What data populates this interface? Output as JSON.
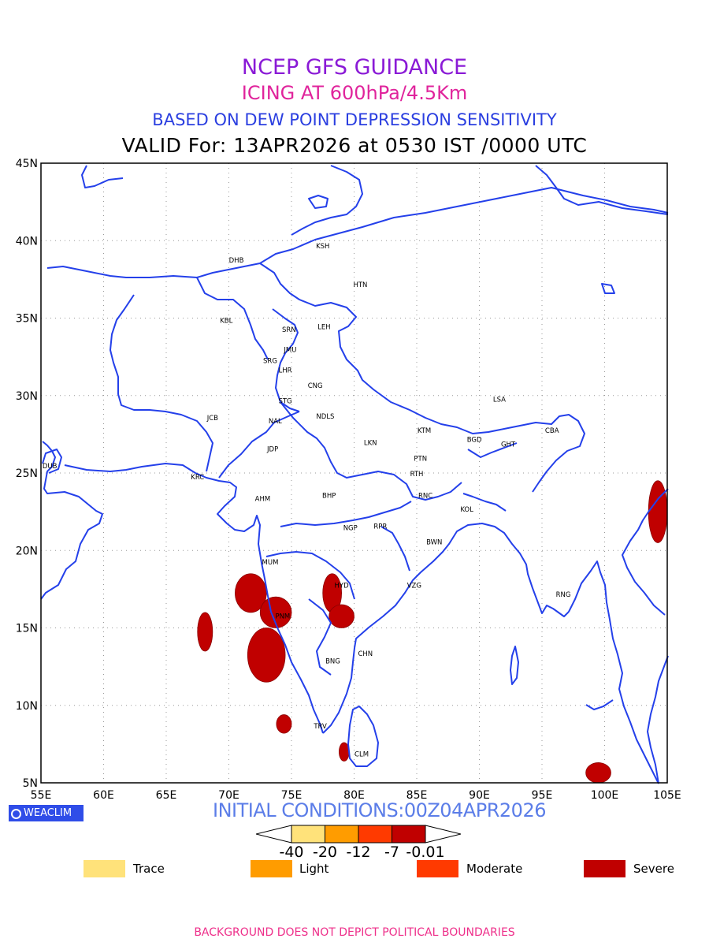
{
  "header": {
    "line1": "NCEP GFS GUIDANCE",
    "line2": "ICING AT 600hPa/4.5Km",
    "line3": "BASED ON DEW POINT DEPRESSION SENSITIVITY",
    "line4": "VALID For: 13APR2026 at 0530 IST /0000 UTC"
  },
  "axes": {
    "lon_ticks": [
      "55E",
      "60E",
      "65E",
      "70E",
      "75E",
      "80E",
      "85E",
      "90E",
      "95E",
      "100E",
      "105E"
    ],
    "lat_ticks": [
      "5N",
      "10N",
      "15N",
      "20N",
      "25N",
      "30N",
      "35N",
      "40N",
      "45N"
    ],
    "lon_range": [
      55,
      105
    ],
    "lat_range": [
      5,
      45
    ],
    "grid": "dotted"
  },
  "cities": [
    {
      "code": "KSH",
      "lon": 77.5,
      "lat": 39.5
    },
    {
      "code": "DHB",
      "lon": 70.6,
      "lat": 38.6
    },
    {
      "code": "HTN",
      "lon": 80.5,
      "lat": 37.0
    },
    {
      "code": "KBL",
      "lon": 69.8,
      "lat": 34.7
    },
    {
      "code": "SRN",
      "lon": 74.8,
      "lat": 34.1
    },
    {
      "code": "LEH",
      "lon": 77.6,
      "lat": 34.3
    },
    {
      "code": "JMU",
      "lon": 74.9,
      "lat": 32.8
    },
    {
      "code": "SRG",
      "lon": 73.3,
      "lat": 32.1
    },
    {
      "code": "LHR",
      "lon": 74.5,
      "lat": 31.5
    },
    {
      "code": "CNG",
      "lon": 76.9,
      "lat": 30.5
    },
    {
      "code": "STG",
      "lon": 74.5,
      "lat": 29.5
    },
    {
      "code": "LSA",
      "lon": 91.6,
      "lat": 29.6
    },
    {
      "code": "JCB",
      "lon": 68.7,
      "lat": 28.4
    },
    {
      "code": "NAL",
      "lon": 73.7,
      "lat": 28.2
    },
    {
      "code": "NDLS",
      "lon": 77.7,
      "lat": 28.5
    },
    {
      "code": "KTM",
      "lon": 85.6,
      "lat": 27.6
    },
    {
      "code": "CBA",
      "lon": 95.8,
      "lat": 27.6
    },
    {
      "code": "BGD",
      "lon": 89.6,
      "lat": 27.0
    },
    {
      "code": "GHT",
      "lon": 92.3,
      "lat": 26.7
    },
    {
      "code": "JDP",
      "lon": 73.5,
      "lat": 26.4
    },
    {
      "code": "LKN",
      "lon": 81.3,
      "lat": 26.8
    },
    {
      "code": "PTN",
      "lon": 85.3,
      "lat": 25.8
    },
    {
      "code": "DUB",
      "lon": 55.7,
      "lat": 25.3
    },
    {
      "code": "KRC",
      "lon": 67.5,
      "lat": 24.6
    },
    {
      "code": "RTH",
      "lon": 85.0,
      "lat": 24.8
    },
    {
      "code": "AHM",
      "lon": 72.7,
      "lat": 23.2
    },
    {
      "code": "BHP",
      "lon": 78.0,
      "lat": 23.4
    },
    {
      "code": "RNC",
      "lon": 85.7,
      "lat": 23.4
    },
    {
      "code": "KOL",
      "lon": 89.0,
      "lat": 22.5
    },
    {
      "code": "NGP",
      "lon": 79.7,
      "lat": 21.3
    },
    {
      "code": "RPR",
      "lon": 82.1,
      "lat": 21.4
    },
    {
      "code": "BWN",
      "lon": 86.4,
      "lat": 20.4
    },
    {
      "code": "MUM",
      "lon": 73.3,
      "lat": 19.1
    },
    {
      "code": "HYD",
      "lon": 79.0,
      "lat": 17.6
    },
    {
      "code": "VZG",
      "lon": 84.8,
      "lat": 17.6
    },
    {
      "code": "RNG",
      "lon": 96.7,
      "lat": 17.0
    },
    {
      "code": "PNM",
      "lon": 74.3,
      "lat": 15.6
    },
    {
      "code": "CHN",
      "lon": 80.9,
      "lat": 13.2
    },
    {
      "code": "BNG",
      "lon": 78.3,
      "lat": 12.7
    },
    {
      "code": "TRV",
      "lon": 77.3,
      "lat": 8.5
    },
    {
      "code": "CLM",
      "lon": 80.6,
      "lat": 6.7
    }
  ],
  "branding": {
    "logo": "WEACLIM"
  },
  "init_conditions": "INITIAL CONDITIONS:00Z04APR2026",
  "colorbar": {
    "colors": [
      "#ffe27a",
      "#ff9c00",
      "#ff3a00",
      "#c00000"
    ],
    "labels": [
      "-40",
      "-20",
      "-12",
      "-7",
      "-0.01"
    ]
  },
  "legend": [
    {
      "label": "Trace",
      "color": "#ffe27a"
    },
    {
      "label": "Light",
      "color": "#ff9c00"
    },
    {
      "label": "Moderate",
      "color": "#ff3a00"
    },
    {
      "label": "Severe",
      "color": "#c00000"
    }
  ],
  "icing_areas": [
    {
      "category": "Severe",
      "lat": [
        16.0,
        18.5
      ],
      "lon": [
        70.5,
        73.0
      ]
    },
    {
      "category": "Severe",
      "lat": [
        15.0,
        17.0
      ],
      "lon": [
        72.5,
        75.0
      ]
    },
    {
      "category": "Severe",
      "lat": [
        13.5,
        16.0
      ],
      "lon": [
        67.5,
        68.7
      ]
    },
    {
      "category": "Severe",
      "lat": [
        11.5,
        15.0
      ],
      "lon": [
        71.5,
        74.5
      ]
    },
    {
      "category": "Severe",
      "lat": [
        16.0,
        18.5
      ],
      "lon": [
        77.5,
        79.0
      ]
    },
    {
      "category": "Severe",
      "lat": [
        15.0,
        16.5
      ],
      "lon": [
        78.0,
        80.0
      ]
    },
    {
      "category": "Severe",
      "lat": [
        8.2,
        9.4
      ],
      "lon": [
        73.8,
        75.0
      ]
    },
    {
      "category": "Severe",
      "lat": [
        6.4,
        7.6
      ],
      "lon": [
        78.8,
        79.6
      ]
    },
    {
      "category": "Severe",
      "lat": [
        20.5,
        24.5
      ],
      "lon": [
        103.5,
        105.0
      ]
    },
    {
      "category": "Severe",
      "lat": [
        5.0,
        6.3
      ],
      "lon": [
        98.5,
        100.5
      ]
    }
  ],
  "footer": "BACKGROUND DOES NOT DEPICT POLITICAL BOUNDARIES"
}
